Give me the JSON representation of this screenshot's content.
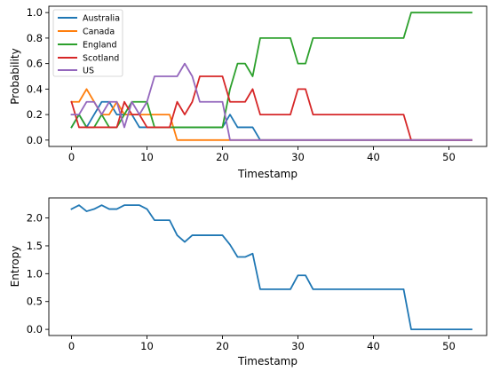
{
  "chart_data": [
    {
      "type": "line",
      "xlabel": "Timestamp",
      "ylabel": "Probability",
      "xlim": [
        -3,
        55
      ],
      "ylim": [
        -0.05,
        1.05
      ],
      "xticks": [
        0,
        10,
        20,
        30,
        40,
        50
      ],
      "yticks": [
        0.0,
        0.2,
        0.4,
        0.6,
        0.8,
        1.0
      ],
      "xtick_labels": [
        "0",
        "10",
        "20",
        "30",
        "40",
        "50"
      ],
      "ytick_labels": [
        "0.0",
        "0.2",
        "0.4",
        "0.6",
        "0.8",
        "1.0"
      ],
      "grid": false,
      "legend_position": "upper-left",
      "x": [
        0,
        1,
        2,
        3,
        4,
        5,
        6,
        7,
        8,
        9,
        10,
        11,
        12,
        13,
        14,
        15,
        16,
        17,
        18,
        19,
        20,
        21,
        22,
        23,
        24,
        25,
        26,
        27,
        28,
        29,
        30,
        31,
        32,
        33,
        34,
        35,
        36,
        37,
        38,
        39,
        40,
        41,
        42,
        43,
        44,
        45,
        46,
        47,
        48,
        49,
        50,
        51,
        52,
        53
      ],
      "series": [
        {
          "name": "Australia",
          "color": "#1f77b4",
          "values": [
            0.1,
            0.2,
            0.1,
            0.2,
            0.3,
            0.3,
            0.2,
            0.2,
            0.2,
            0.1,
            0.1,
            0.1,
            0.1,
            0.1,
            0.1,
            0.1,
            0.1,
            0.1,
            0.1,
            0.1,
            0.1,
            0.2,
            0.1,
            0.1,
            0.1,
            0,
            0,
            0,
            0,
            0,
            0,
            0,
            0,
            0,
            0,
            0,
            0,
            0,
            0,
            0,
            0,
            0,
            0,
            0,
            0,
            0,
            0,
            0,
            0,
            0,
            0,
            0,
            0,
            0
          ]
        },
        {
          "name": "Canada",
          "color": "#ff7f0e",
          "values": [
            0.3,
            0.3,
            0.4,
            0.3,
            0.2,
            0.2,
            0.3,
            0.2,
            0.2,
            0.2,
            0.2,
            0.2,
            0.2,
            0.2,
            0,
            0,
            0,
            0,
            0,
            0,
            0,
            0,
            0,
            0,
            0,
            0,
            0,
            0,
            0,
            0,
            0,
            0,
            0,
            0,
            0,
            0,
            0,
            0,
            0,
            0,
            0,
            0,
            0,
            0,
            0,
            0,
            0,
            0,
            0,
            0,
            0,
            0,
            0,
            0
          ]
        },
        {
          "name": "England",
          "color": "#2ca02c",
          "values": [
            0.1,
            0.2,
            0.1,
            0.1,
            0.2,
            0.1,
            0.1,
            0.2,
            0.3,
            0.3,
            0.3,
            0.1,
            0.1,
            0.1,
            0.1,
            0.1,
            0.1,
            0.1,
            0.1,
            0.1,
            0.1,
            0.4,
            0.6,
            0.6,
            0.5,
            0.8,
            0.8,
            0.8,
            0.8,
            0.8,
            0.6,
            0.6,
            0.8,
            0.8,
            0.8,
            0.8,
            0.8,
            0.8,
            0.8,
            0.8,
            0.8,
            0.8,
            0.8,
            0.8,
            0.8,
            1,
            1,
            1,
            1,
            1,
            1,
            1,
            1,
            1
          ]
        },
        {
          "name": "Scotland",
          "color": "#d62728",
          "values": [
            0.3,
            0.1,
            0.1,
            0.1,
            0.1,
            0.1,
            0.1,
            0.3,
            0.2,
            0.2,
            0.1,
            0.1,
            0.1,
            0.1,
            0.3,
            0.2,
            0.3,
            0.5,
            0.5,
            0.5,
            0.5,
            0.3,
            0.3,
            0.3,
            0.4,
            0.2,
            0.2,
            0.2,
            0.2,
            0.2,
            0.4,
            0.4,
            0.2,
            0.2,
            0.2,
            0.2,
            0.2,
            0.2,
            0.2,
            0.2,
            0.2,
            0.2,
            0.2,
            0.2,
            0.2,
            0,
            0,
            0,
            0,
            0,
            0,
            0,
            0,
            0
          ]
        },
        {
          "name": "US",
          "color": "#9467bd",
          "values": [
            0.2,
            0.2,
            0.3,
            0.3,
            0.2,
            0.3,
            0.3,
            0.1,
            0.3,
            0.2,
            0.3,
            0.5,
            0.5,
            0.5,
            0.5,
            0.6,
            0.5,
            0.3,
            0.3,
            0.3,
            0.3,
            0,
            0,
            0,
            0,
            0,
            0,
            0,
            0,
            0,
            0,
            0,
            0,
            0,
            0,
            0,
            0,
            0,
            0,
            0,
            0,
            0,
            0,
            0,
            0,
            0,
            0,
            0,
            0,
            0,
            0,
            0,
            0,
            0
          ]
        }
      ]
    },
    {
      "type": "line",
      "xlabel": "Timestamp",
      "ylabel": "Entropy",
      "xlim": [
        -3,
        55
      ],
      "ylim": [
        -0.11,
        2.36
      ],
      "xticks": [
        0,
        10,
        20,
        30,
        40,
        50
      ],
      "yticks": [
        0.0,
        0.5,
        1.0,
        1.5,
        2.0
      ],
      "xtick_labels": [
        "0",
        "10",
        "20",
        "30",
        "40",
        "50"
      ],
      "ytick_labels": [
        "0.0",
        "0.5",
        "1.0",
        "1.5",
        "2.0"
      ],
      "grid": false,
      "x": [
        0,
        1,
        2,
        3,
        4,
        5,
        6,
        7,
        8,
        9,
        10,
        11,
        12,
        13,
        14,
        15,
        16,
        17,
        18,
        19,
        20,
        21,
        22,
        23,
        24,
        25,
        26,
        27,
        28,
        29,
        30,
        31,
        32,
        33,
        34,
        35,
        36,
        37,
        38,
        39,
        40,
        41,
        42,
        43,
        44,
        45,
        46,
        47,
        48,
        49,
        50,
        51,
        52,
        53
      ],
      "series": [
        {
          "color": "#1f77b4",
          "values": [
            2.16,
            2.23,
            2.12,
            2.16,
            2.23,
            2.16,
            2.16,
            2.23,
            2.23,
            2.23,
            2.16,
            1.96,
            1.96,
            1.96,
            1.69,
            1.57,
            1.69,
            1.69,
            1.69,
            1.69,
            1.69,
            1.52,
            1.3,
            1.3,
            1.36,
            0.72,
            0.72,
            0.72,
            0.72,
            0.72,
            0.97,
            0.97,
            0.72,
            0.72,
            0.72,
            0.72,
            0.72,
            0.72,
            0.72,
            0.72,
            0.72,
            0.72,
            0.72,
            0.72,
            0.72,
            0,
            0,
            0,
            0,
            0,
            0,
            0,
            0,
            0
          ]
        }
      ]
    }
  ]
}
